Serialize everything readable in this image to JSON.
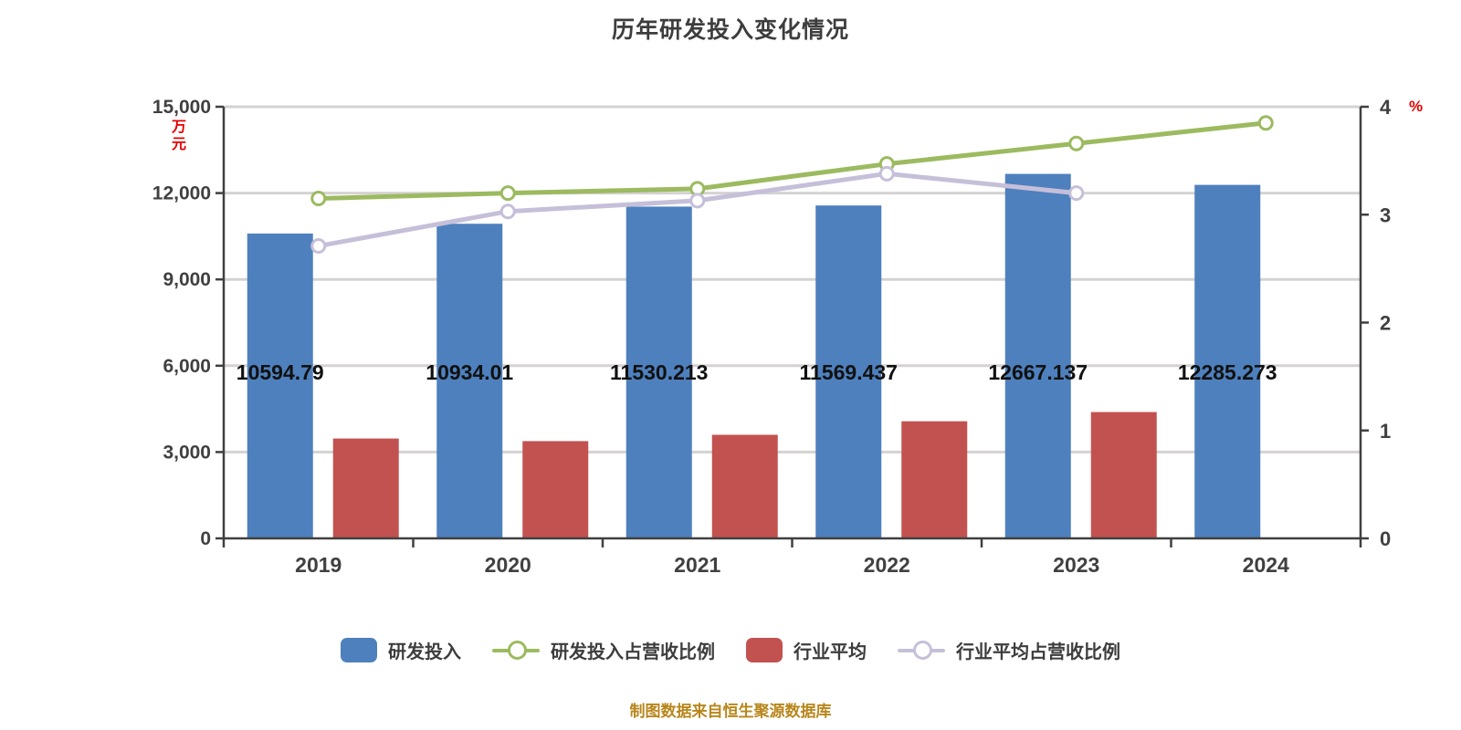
{
  "title": "历年研发投入变化情况",
  "source_note": "制图数据来自恒生聚源数据库",
  "axes": {
    "left_unit": "万元",
    "right_unit": "%",
    "unit_color": "#e60000",
    "left_ticks": [
      "15,000",
      "12,000",
      "9,000",
      "6,000",
      "3,000",
      "0"
    ],
    "right_ticks": [
      "4",
      "3",
      "2",
      "1",
      "0"
    ]
  },
  "chart_data": {
    "type": "bar+line combo",
    "title": "历年研发投入变化情况",
    "categories": [
      "2019",
      "2020",
      "2021",
      "2022",
      "2023",
      "2024"
    ],
    "left_axis": {
      "min": 0,
      "max": 15000,
      "step": 3000
    },
    "right_axis": {
      "min": 0,
      "max": 4,
      "step": 1
    },
    "grid": true,
    "legend_position": "bottom",
    "series": [
      {
        "key": "rd-investment",
        "name": "研发投入",
        "type": "bar",
        "axis": "left",
        "color": "#4e80bd",
        "values": [
          10594.79,
          10934.01,
          11530.213,
          11569.437,
          12667.137,
          12285.273
        ],
        "labels": [
          "10594.79",
          "10934.01",
          "11530.213",
          "11569.437",
          "12667.137",
          "12285.273"
        ]
      },
      {
        "key": "rd-ratio",
        "name": "研发投入占营收比例",
        "type": "line",
        "axis": "right",
        "color": "#9cba5f",
        "values": [
          3.15,
          3.2,
          3.24,
          3.47,
          3.66,
          3.85
        ]
      },
      {
        "key": "industry-average",
        "name": "行业平均",
        "type": "bar",
        "axis": "left",
        "color": "#c25250",
        "values": [
          3470,
          3380,
          3600,
          4070,
          4390,
          null
        ]
      },
      {
        "key": "industry-ratio",
        "name": "行业平均占营收比例",
        "type": "line",
        "axis": "right",
        "color": "#c6bfd9",
        "values": [
          2.71,
          3.03,
          3.13,
          3.38,
          3.2,
          null
        ]
      }
    ]
  },
  "legend": {
    "items": [
      {
        "label": "研发投入",
        "type": "bar",
        "color": "#4e80bd"
      },
      {
        "label": "研发投入占营收比例",
        "type": "line",
        "color": "#9cba5f"
      },
      {
        "label": "行业平均",
        "type": "bar",
        "color": "#c25250"
      },
      {
        "label": "行业平均占营收比例",
        "type": "line",
        "color": "#c6bfd9"
      }
    ]
  },
  "colors": {
    "grid": "#d5d2d2",
    "axis": "#404040",
    "tick_text": "#404040",
    "bar_label": "#111111",
    "title_text": "#3d3d3d",
    "source_text": "#b8861b"
  }
}
